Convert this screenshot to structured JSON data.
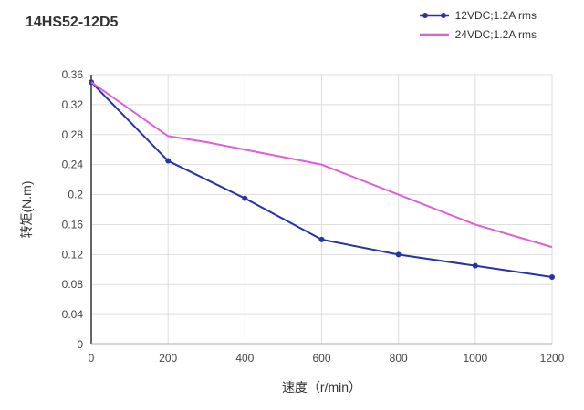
{
  "title": "14HS52-12D5",
  "chart_data": {
    "type": "line",
    "title": "14HS52-12D5",
    "xlabel": "速度（r/min）",
    "ylabel": "转矩(N.m)",
    "xlim": [
      0,
      1200
    ],
    "ylim": [
      0,
      0.36
    ],
    "grid": true,
    "legend_position": "top-right",
    "x_ticks": [
      "0",
      "200",
      "400",
      "600",
      "800",
      "1000",
      "1200"
    ],
    "y_ticks": [
      "0",
      "0.04",
      "0.08",
      "0.12",
      "0.16",
      "0.2",
      "0.24",
      "0.28",
      "0.32",
      "0.36"
    ],
    "series": [
      {
        "name": "12VDC;1.2A rms",
        "color": "#2434a4",
        "marker": true,
        "x": [
          0,
          200,
          400,
          600,
          800,
          1000,
          1200
        ],
        "y": [
          0.35,
          0.245,
          0.195,
          0.14,
          0.12,
          0.105,
          0.09
        ]
      },
      {
        "name": "24VDC;1.2A rms",
        "color": "#e05fd5",
        "marker": false,
        "x": [
          0,
          200,
          300,
          400,
          600,
          800,
          1000,
          1200
        ],
        "y": [
          0.35,
          0.278,
          0.27,
          0.26,
          0.24,
          0.2,
          0.16,
          0.13
        ]
      }
    ],
    "colors": {
      "grid": "#dddddd",
      "y_axis": "#333333",
      "x_axis": "#aaaaaa",
      "text": "#444444"
    }
  }
}
